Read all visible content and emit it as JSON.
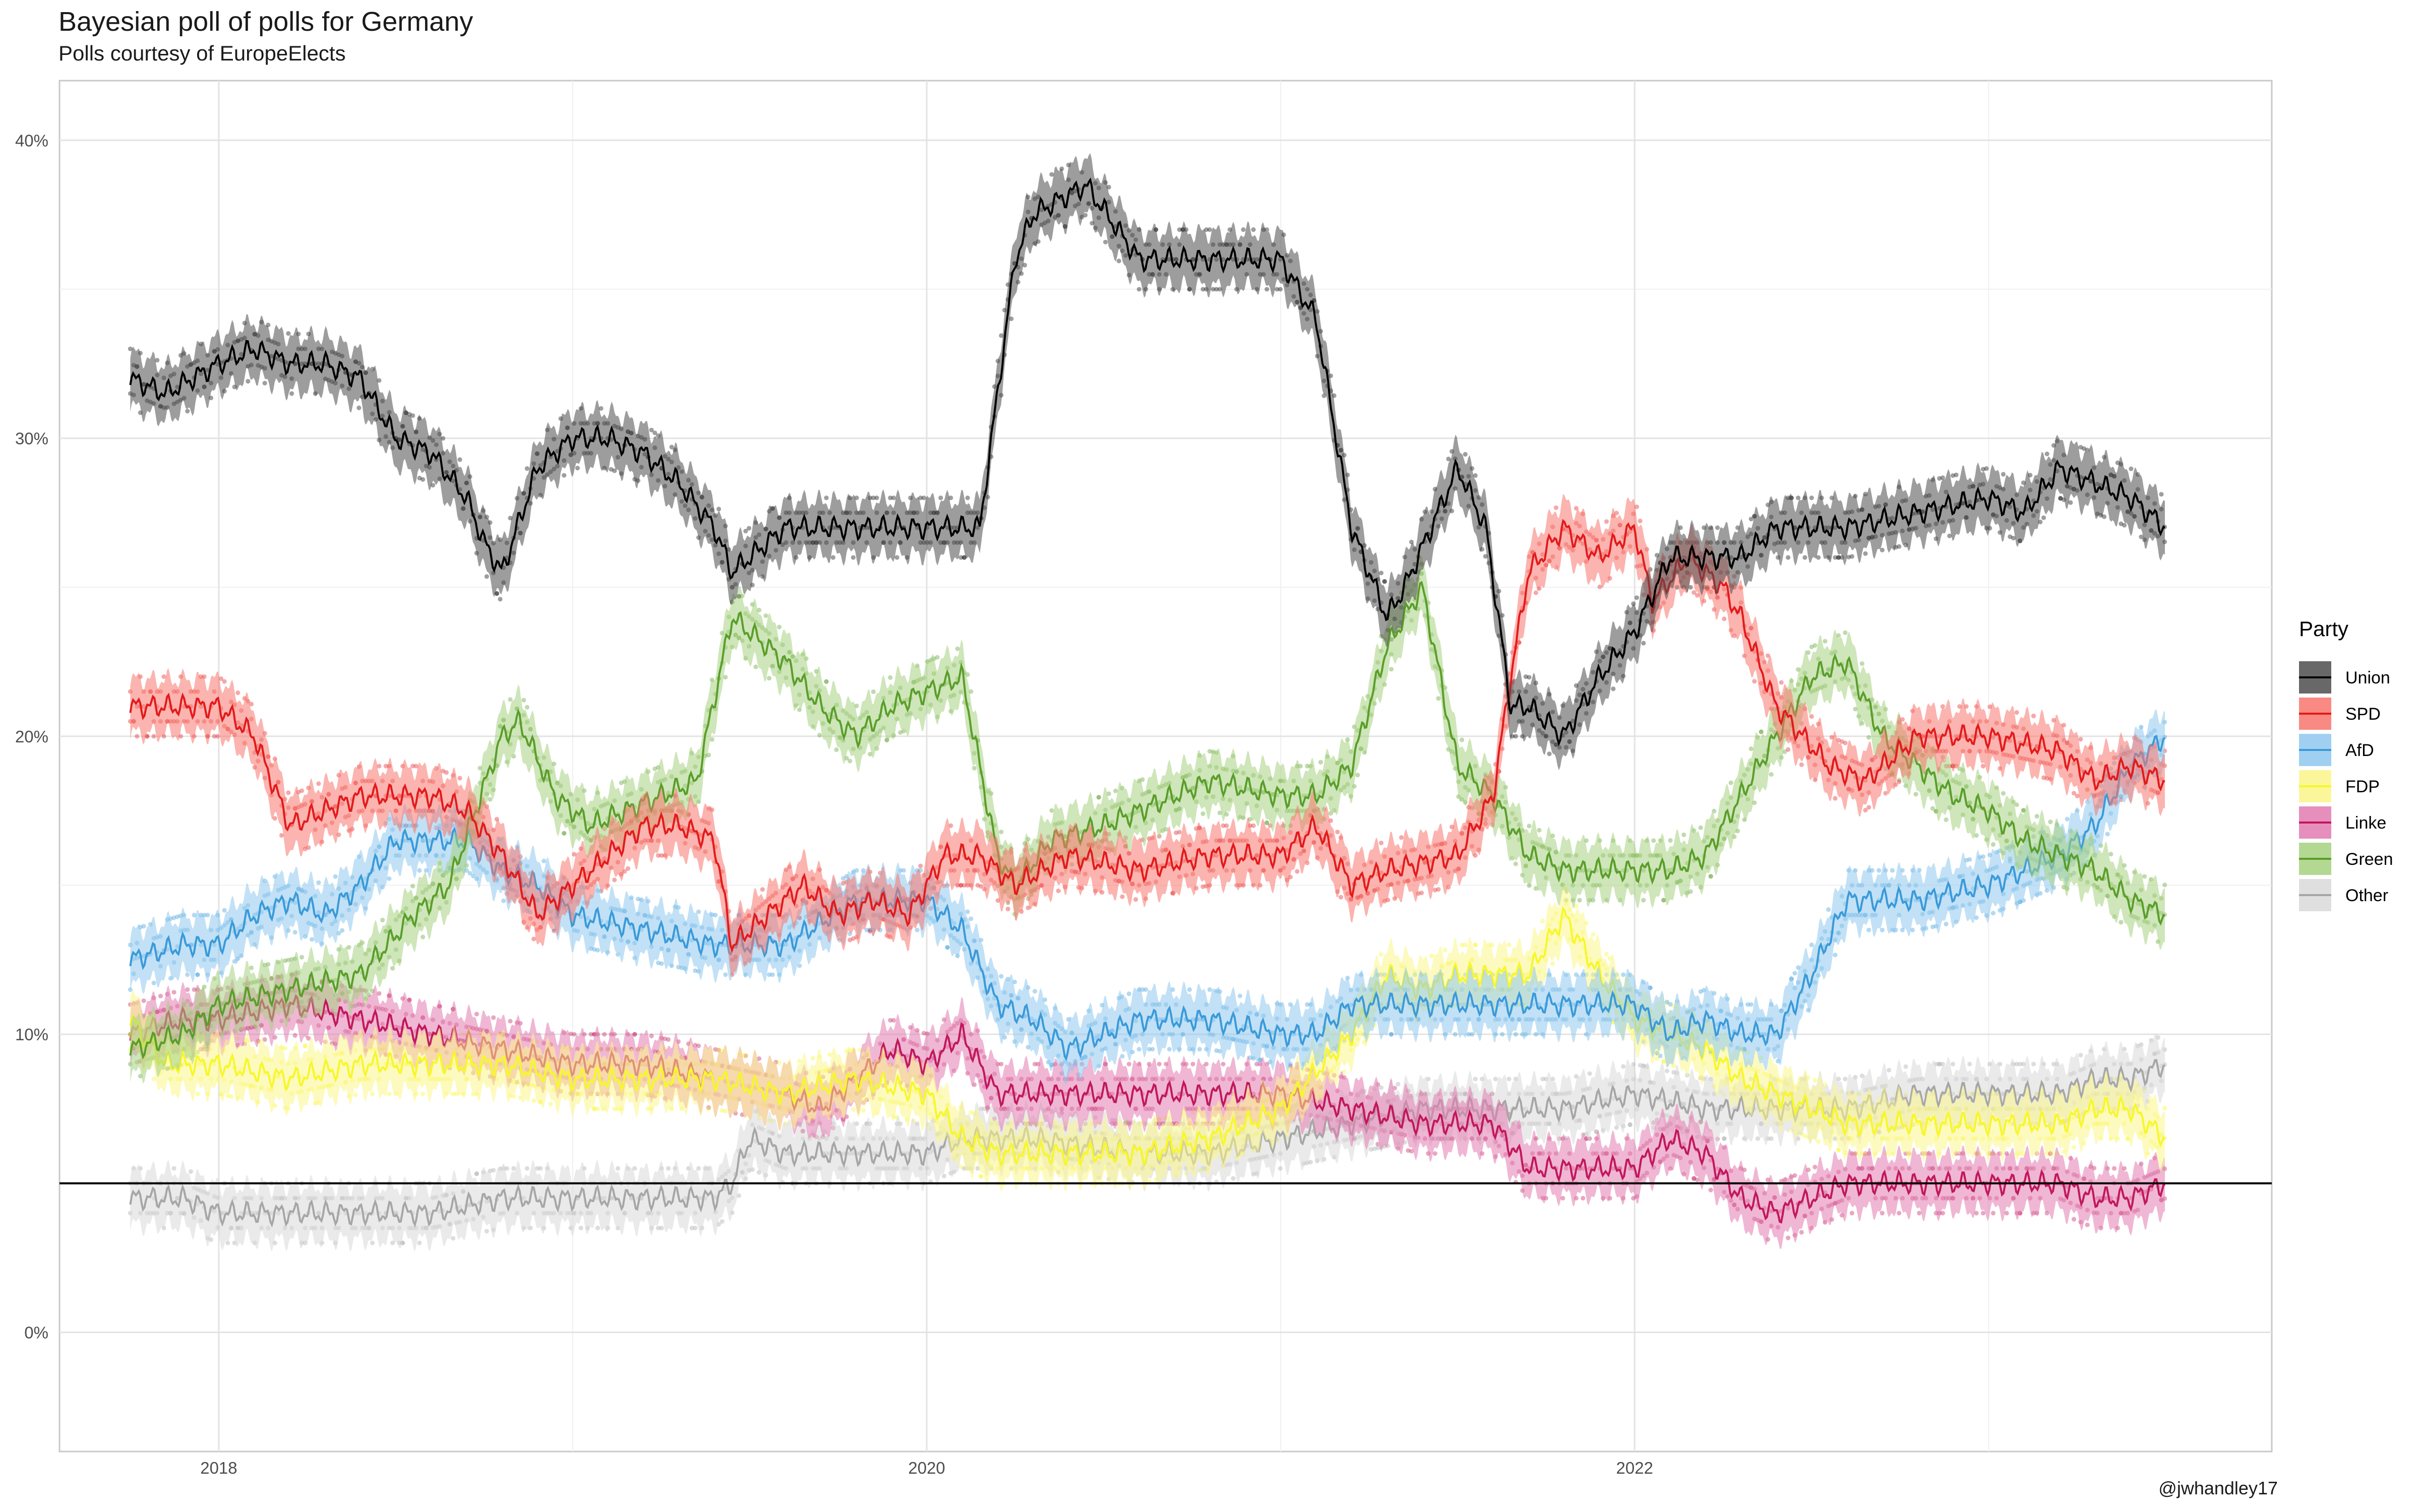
{
  "chart_data": {
    "type": "line",
    "title": "Bayesian poll of polls for Germany",
    "subtitle": "Polls courtesy of EuropeElects",
    "caption": "@jwhandley17",
    "xlabel": "",
    "ylabel": "",
    "xlim": [
      2017.55,
      2023.8
    ],
    "ylim": [
      -0.04,
      0.42
    ],
    "y_ticks": [
      0,
      0.1,
      0.2,
      0.3,
      0.4
    ],
    "y_tick_labels": [
      "0%",
      "10%",
      "20%",
      "30%",
      "40%"
    ],
    "x_ticks": [
      2018,
      2020,
      2022
    ],
    "x_tick_labels": [
      "2018",
      "2020",
      "2022"
    ],
    "threshold_line": 0.05,
    "grid": true,
    "legend": {
      "title": "Party",
      "position": "right"
    },
    "series": [
      {
        "name": "Union",
        "color": "#000000",
        "band_color": "#4d4d4d",
        "x": [
          2017.75,
          2017.85,
          2018.0,
          2018.1,
          2018.2,
          2018.3,
          2018.4,
          2018.5,
          2018.6,
          2018.7,
          2018.75,
          2018.8,
          2018.9,
          2019.0,
          2019.1,
          2019.2,
          2019.3,
          2019.4,
          2019.45,
          2019.5,
          2019.6,
          2019.8,
          2020.0,
          2020.15,
          2020.25,
          2020.3,
          2020.45,
          2020.6,
          2020.8,
          2021.0,
          2021.1,
          2021.2,
          2021.3,
          2021.35,
          2021.5,
          2021.58,
          2021.65,
          2021.7,
          2021.8,
          2021.9,
          2022.0,
          2022.1,
          2022.2,
          2022.3,
          2022.4,
          2022.6,
          2022.8,
          2023.0,
          2023.1,
          2023.2,
          2023.3,
          2023.4,
          2023.5
        ],
        "y": [
          0.32,
          0.315,
          0.325,
          0.33,
          0.325,
          0.325,
          0.32,
          0.3,
          0.295,
          0.28,
          0.265,
          0.255,
          0.29,
          0.3,
          0.3,
          0.295,
          0.285,
          0.27,
          0.255,
          0.26,
          0.27,
          0.27,
          0.27,
          0.27,
          0.36,
          0.375,
          0.385,
          0.36,
          0.36,
          0.36,
          0.34,
          0.27,
          0.24,
          0.25,
          0.29,
          0.27,
          0.21,
          0.21,
          0.2,
          0.22,
          0.235,
          0.26,
          0.26,
          0.26,
          0.27,
          0.27,
          0.275,
          0.28,
          0.275,
          0.29,
          0.285,
          0.28,
          0.27
        ]
      },
      {
        "name": "SPD",
        "color": "#e41a1c",
        "band_color": "#f8766d",
        "x": [
          2017.75,
          2017.9,
          2018.0,
          2018.05,
          2018.1,
          2018.2,
          2018.4,
          2018.6,
          2018.7,
          2018.8,
          2018.9,
          2019.0,
          2019.1,
          2019.2,
          2019.3,
          2019.4,
          2019.45,
          2019.55,
          2019.65,
          2019.75,
          2019.85,
          2019.95,
          2020.05,
          2020.15,
          2020.25,
          2020.4,
          2020.6,
          2020.8,
          2021.0,
          2021.1,
          2021.2,
          2021.3,
          2021.5,
          2021.6,
          2021.65,
          2021.7,
          2021.8,
          2021.9,
          2022.0,
          2022.05,
          2022.15,
          2022.25,
          2022.3,
          2022.4,
          2022.55,
          2022.65,
          2022.8,
          2023.0,
          2023.2,
          2023.3,
          2023.4,
          2023.5
        ],
        "y": [
          0.21,
          0.21,
          0.21,
          0.205,
          0.2,
          0.17,
          0.18,
          0.18,
          0.175,
          0.16,
          0.14,
          0.15,
          0.16,
          0.17,
          0.17,
          0.165,
          0.13,
          0.14,
          0.15,
          0.14,
          0.145,
          0.14,
          0.16,
          0.16,
          0.15,
          0.16,
          0.155,
          0.16,
          0.16,
          0.17,
          0.15,
          0.155,
          0.16,
          0.18,
          0.22,
          0.255,
          0.27,
          0.26,
          0.27,
          0.245,
          0.26,
          0.25,
          0.24,
          0.21,
          0.19,
          0.185,
          0.2,
          0.2,
          0.195,
          0.185,
          0.19,
          0.185
        ]
      },
      {
        "name": "AfD",
        "color": "#3a9ad9",
        "band_color": "#8fc8ef",
        "x": [
          2017.75,
          2017.9,
          2018.0,
          2018.1,
          2018.2,
          2018.3,
          2018.4,
          2018.5,
          2018.6,
          2018.7,
          2018.8,
          2018.9,
          2019.0,
          2019.2,
          2019.4,
          2019.6,
          2019.8,
          2020.0,
          2020.1,
          2020.2,
          2020.3,
          2020.4,
          2020.6,
          2020.8,
          2021.0,
          2021.1,
          2021.2,
          2021.4,
          2021.5,
          2021.6,
          2021.8,
          2022.0,
          2022.1,
          2022.2,
          2022.3,
          2022.4,
          2022.5,
          2022.6,
          2022.8,
          2023.0,
          2023.1,
          2023.2,
          2023.3,
          2023.4,
          2023.5
        ],
        "y": [
          0.125,
          0.13,
          0.13,
          0.14,
          0.145,
          0.14,
          0.15,
          0.165,
          0.165,
          0.165,
          0.155,
          0.15,
          0.14,
          0.135,
          0.13,
          0.13,
          0.145,
          0.145,
          0.135,
          0.11,
          0.105,
          0.095,
          0.105,
          0.105,
          0.1,
          0.1,
          0.11,
          0.11,
          0.11,
          0.11,
          0.11,
          0.11,
          0.1,
          0.105,
          0.1,
          0.1,
          0.12,
          0.145,
          0.145,
          0.15,
          0.155,
          0.16,
          0.17,
          0.19,
          0.2
        ]
      },
      {
        "name": "FDP",
        "color": "#f7f72a",
        "band_color": "#fbf58a",
        "x": [
          2017.75,
          2017.85,
          2018.0,
          2018.2,
          2018.4,
          2018.6,
          2018.8,
          2019.0,
          2019.2,
          2019.4,
          2019.6,
          2019.8,
          2020.0,
          2020.1,
          2020.2,
          2020.4,
          2020.6,
          2020.8,
          2021.0,
          2021.2,
          2021.3,
          2021.4,
          2021.5,
          2021.6,
          2021.7,
          2021.8,
          2021.9,
          2022.0,
          2022.1,
          2022.2,
          2022.3,
          2022.4,
          2022.6,
          2022.8,
          2023.0,
          2023.2,
          2023.3,
          2023.4,
          2023.5
        ],
        "y": [
          0.105,
          0.09,
          0.09,
          0.085,
          0.09,
          0.09,
          0.09,
          0.085,
          0.085,
          0.085,
          0.08,
          0.085,
          0.08,
          0.065,
          0.06,
          0.06,
          0.06,
          0.065,
          0.075,
          0.1,
          0.12,
          0.115,
          0.12,
          0.12,
          0.12,
          0.14,
          0.12,
          0.105,
          0.1,
          0.095,
          0.085,
          0.08,
          0.07,
          0.07,
          0.07,
          0.07,
          0.075,
          0.075,
          0.065
        ]
      },
      {
        "name": "Linke",
        "color": "#c2185b",
        "band_color": "#e27bb0",
        "x": [
          2017.75,
          2017.9,
          2018.0,
          2018.2,
          2018.4,
          2018.6,
          2018.8,
          2019.0,
          2019.2,
          2019.4,
          2019.6,
          2019.7,
          2019.8,
          2019.9,
          2020.0,
          2020.1,
          2020.2,
          2020.3,
          2020.5,
          2020.7,
          2020.9,
          2021.0,
          2021.2,
          2021.4,
          2021.6,
          2021.7,
          2021.8,
          2021.9,
          2022.0,
          2022.1,
          2022.2,
          2022.3,
          2022.4,
          2022.5,
          2022.6,
          2022.8,
          2023.0,
          2023.2,
          2023.3,
          2023.4,
          2023.5
        ],
        "y": [
          0.1,
          0.105,
          0.105,
          0.11,
          0.105,
          0.1,
          0.095,
          0.09,
          0.09,
          0.085,
          0.08,
          0.075,
          0.085,
          0.095,
          0.09,
          0.1,
          0.08,
          0.08,
          0.08,
          0.08,
          0.08,
          0.08,
          0.075,
          0.07,
          0.07,
          0.055,
          0.055,
          0.055,
          0.055,
          0.065,
          0.06,
          0.045,
          0.04,
          0.045,
          0.05,
          0.05,
          0.05,
          0.05,
          0.045,
          0.045,
          0.05
        ]
      },
      {
        "name": "Green",
        "color": "#5a9e2a",
        "band_color": "#a6d17f",
        "x": [
          2017.75,
          2017.9,
          2018.0,
          2018.2,
          2018.4,
          2018.55,
          2018.65,
          2018.8,
          2018.85,
          2018.95,
          2019.05,
          2019.15,
          2019.25,
          2019.35,
          2019.45,
          2019.5,
          2019.6,
          2019.7,
          2019.8,
          2019.9,
          2020.0,
          2020.1,
          2020.2,
          2020.25,
          2020.35,
          2020.5,
          2020.6,
          2020.8,
          2021.0,
          2021.1,
          2021.2,
          2021.3,
          2021.4,
          2021.5,
          2021.6,
          2021.7,
          2021.8,
          2022.0,
          2022.1,
          2022.2,
          2022.3,
          2022.4,
          2022.5,
          2022.6,
          2022.7,
          2022.8,
          2022.9,
          2023.0,
          2023.1,
          2023.2,
          2023.3,
          2023.4,
          2023.5
        ],
        "y": [
          0.095,
          0.1,
          0.11,
          0.115,
          0.12,
          0.14,
          0.15,
          0.2,
          0.205,
          0.18,
          0.17,
          0.175,
          0.18,
          0.185,
          0.24,
          0.235,
          0.225,
          0.21,
          0.2,
          0.21,
          0.215,
          0.22,
          0.16,
          0.15,
          0.165,
          0.17,
          0.175,
          0.185,
          0.18,
          0.18,
          0.19,
          0.23,
          0.25,
          0.19,
          0.18,
          0.16,
          0.155,
          0.155,
          0.155,
          0.16,
          0.18,
          0.2,
          0.22,
          0.225,
          0.2,
          0.19,
          0.18,
          0.175,
          0.165,
          0.16,
          0.155,
          0.145,
          0.14
        ]
      },
      {
        "name": "Other",
        "color": "#a6a6a6",
        "band_color": "#d9d9d9",
        "x": [
          2017.75,
          2017.9,
          2018.0,
          2018.1,
          2018.2,
          2018.4,
          2018.6,
          2018.8,
          2019.0,
          2019.2,
          2019.4,
          2019.45,
          2019.5,
          2019.6,
          2019.8,
          2020.0,
          2020.1,
          2020.3,
          2020.6,
          2020.8,
          2021.0,
          2021.2,
          2021.4,
          2021.6,
          2021.8,
          2022.0,
          2022.2,
          2022.4,
          2022.6,
          2022.8,
          2023.0,
          2023.2,
          2023.3,
          2023.4,
          2023.5
        ],
        "y": [
          0.045,
          0.045,
          0.04,
          0.04,
          0.04,
          0.04,
          0.04,
          0.045,
          0.045,
          0.045,
          0.045,
          0.05,
          0.065,
          0.06,
          0.06,
          0.06,
          0.065,
          0.065,
          0.06,
          0.06,
          0.065,
          0.07,
          0.075,
          0.075,
          0.075,
          0.08,
          0.075,
          0.075,
          0.075,
          0.08,
          0.08,
          0.08,
          0.085,
          0.085,
          0.09
        ]
      }
    ]
  }
}
